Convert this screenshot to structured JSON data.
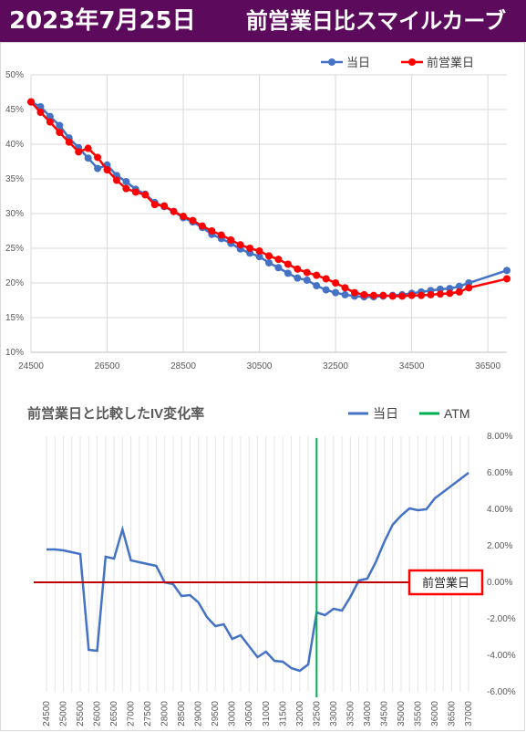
{
  "header": {
    "date": "2023年7月25日",
    "title": "前営業日比スマイルカーブ",
    "bg_color": "#5c0a5c"
  },
  "chart_data": [
    {
      "type": "line",
      "title": "",
      "legend_position": "top-right",
      "grid": true,
      "xlim": [
        24500,
        37000
      ],
      "ylim": [
        0.1,
        0.5
      ],
      "x_tick_labels": [
        "24500",
        "26500",
        "28500",
        "30500",
        "32500",
        "34500",
        "36500"
      ],
      "x_ticks": [
        24500,
        26500,
        28500,
        30500,
        32500,
        34500,
        36500
      ],
      "y_tick_labels": [
        "10%",
        "15%",
        "20%",
        "25%",
        "30%",
        "35%",
        "40%",
        "45%",
        "50%"
      ],
      "y_ticks": [
        0.1,
        0.15,
        0.2,
        0.25,
        0.3,
        0.35,
        0.4,
        0.45,
        0.5
      ],
      "series": [
        {
          "name": "当日",
          "color": "#4472c4",
          "x": [
            24500,
            24750,
            25000,
            25250,
            25500,
            25750,
            26000,
            26250,
            26500,
            26750,
            27000,
            27250,
            27500,
            27750,
            28000,
            28250,
            28500,
            28750,
            29000,
            29250,
            29500,
            29750,
            30000,
            30250,
            30500,
            30750,
            31000,
            31250,
            31500,
            31750,
            32000,
            32250,
            32500,
            32750,
            33000,
            33250,
            33500,
            33750,
            34000,
            34250,
            34500,
            34750,
            35000,
            35250,
            35500,
            35750,
            36000,
            37000
          ],
          "values": [
            0.461,
            0.454,
            0.44,
            0.427,
            0.409,
            0.395,
            0.38,
            0.365,
            0.37,
            0.355,
            0.346,
            0.335,
            0.328,
            0.316,
            0.31,
            0.303,
            0.294,
            0.288,
            0.28,
            0.27,
            0.264,
            0.257,
            0.249,
            0.243,
            0.238,
            0.229,
            0.222,
            0.214,
            0.207,
            0.204,
            0.196,
            0.19,
            0.186,
            0.183,
            0.181,
            0.18,
            0.18,
            0.181,
            0.182,
            0.183,
            0.185,
            0.187,
            0.189,
            0.191,
            0.192,
            0.195,
            0.2,
            0.218
          ]
        },
        {
          "name": "前営業日",
          "color": "#ff0000",
          "x": [
            24500,
            24750,
            25000,
            25250,
            25500,
            25750,
            26000,
            26250,
            26500,
            26750,
            27000,
            27250,
            27500,
            27750,
            28000,
            28250,
            28500,
            28750,
            29000,
            29250,
            29500,
            29750,
            30000,
            30250,
            30500,
            30750,
            31000,
            31250,
            31500,
            31750,
            32000,
            32250,
            32500,
            32750,
            33000,
            33250,
            33500,
            33750,
            34000,
            34250,
            34500,
            34750,
            35000,
            35250,
            35500,
            35750,
            36000,
            37000
          ],
          "values": [
            0.461,
            0.446,
            0.432,
            0.417,
            0.403,
            0.389,
            0.394,
            0.381,
            0.363,
            0.348,
            0.336,
            0.331,
            0.327,
            0.313,
            0.311,
            0.303,
            0.296,
            0.29,
            0.282,
            0.275,
            0.269,
            0.262,
            0.255,
            0.25,
            0.246,
            0.239,
            0.234,
            0.227,
            0.22,
            0.215,
            0.211,
            0.206,
            0.2,
            0.193,
            0.186,
            0.183,
            0.182,
            0.182,
            0.181,
            0.181,
            0.182,
            0.182,
            0.183,
            0.184,
            0.185,
            0.187,
            0.193,
            0.206
          ]
        }
      ]
    },
    {
      "type": "line",
      "title": "前営業日と比較したIV変化率",
      "legend_position": "top-right",
      "grid": true,
      "xlim": [
        24500,
        37000
      ],
      "ylim": [
        -0.06,
        0.08
      ],
      "x_tick_labels": [
        "24500",
        "25000",
        "25500",
        "26000",
        "26500",
        "27000",
        "27500",
        "28000",
        "28500",
        "29000",
        "29500",
        "30000",
        "30500",
        "31000",
        "31500",
        "32000",
        "32500",
        "33000",
        "33500",
        "34000",
        "34500",
        "35000",
        "35500",
        "36000",
        "36500",
        "37000"
      ],
      "x_ticks": [
        24500,
        25000,
        25500,
        26000,
        26500,
        27000,
        27500,
        28000,
        28500,
        29000,
        29500,
        30000,
        30500,
        31000,
        31500,
        32000,
        32500,
        33000,
        33500,
        34000,
        34500,
        35000,
        35500,
        36000,
        36500,
        37000
      ],
      "y_tick_labels": [
        "8.00%",
        "6.00%",
        "4.00%",
        "2.00%",
        "0.00%",
        "-2.00%",
        "-4.00%",
        "-6.00%"
      ],
      "y_ticks": [
        0.08,
        0.06,
        0.04,
        0.02,
        0.0,
        -0.02,
        -0.04,
        -0.06
      ],
      "series": [
        {
          "name": "当日",
          "color": "#4472c4",
          "x": [
            24500,
            24750,
            25000,
            25250,
            25500,
            25750,
            26000,
            26250,
            26500,
            26750,
            27000,
            27250,
            27500,
            27750,
            28000,
            28250,
            28500,
            28750,
            29000,
            29250,
            29500,
            29750,
            30000,
            30250,
            30500,
            30750,
            31000,
            31250,
            31500,
            31750,
            32000,
            32250,
            32500,
            32750,
            33000,
            33250,
            33500,
            33750,
            34000,
            34250,
            34500,
            34750,
            35000,
            35250,
            35500,
            35750,
            36000,
            37000
          ],
          "values": [
            0.018,
            0.018,
            0.0175,
            0.0165,
            0.0155,
            -0.037,
            -0.0375,
            0.014,
            0.013,
            0.029,
            0.012,
            0.011,
            0.01,
            0.009,
            0.0,
            -0.001,
            -0.0075,
            -0.007,
            -0.011,
            -0.019,
            -0.024,
            -0.023,
            -0.031,
            -0.029,
            -0.035,
            -0.041,
            -0.038,
            -0.043,
            -0.0435,
            -0.047,
            -0.0485,
            -0.045,
            -0.0165,
            -0.018,
            -0.0145,
            -0.0155,
            -0.008,
            0.001,
            0.002,
            0.011,
            0.022,
            0.0315,
            0.0365,
            0.0405,
            0.0395,
            0.04,
            0.046,
            0.06
          ]
        },
        {
          "name": "ATM",
          "color": "#00b050",
          "x": [
            32500,
            32500
          ],
          "values": [
            -0.063,
            0.079
          ]
        }
      ],
      "reference_line": {
        "value": 0.0,
        "color": "#c00000",
        "label": "前営業日"
      }
    }
  ]
}
